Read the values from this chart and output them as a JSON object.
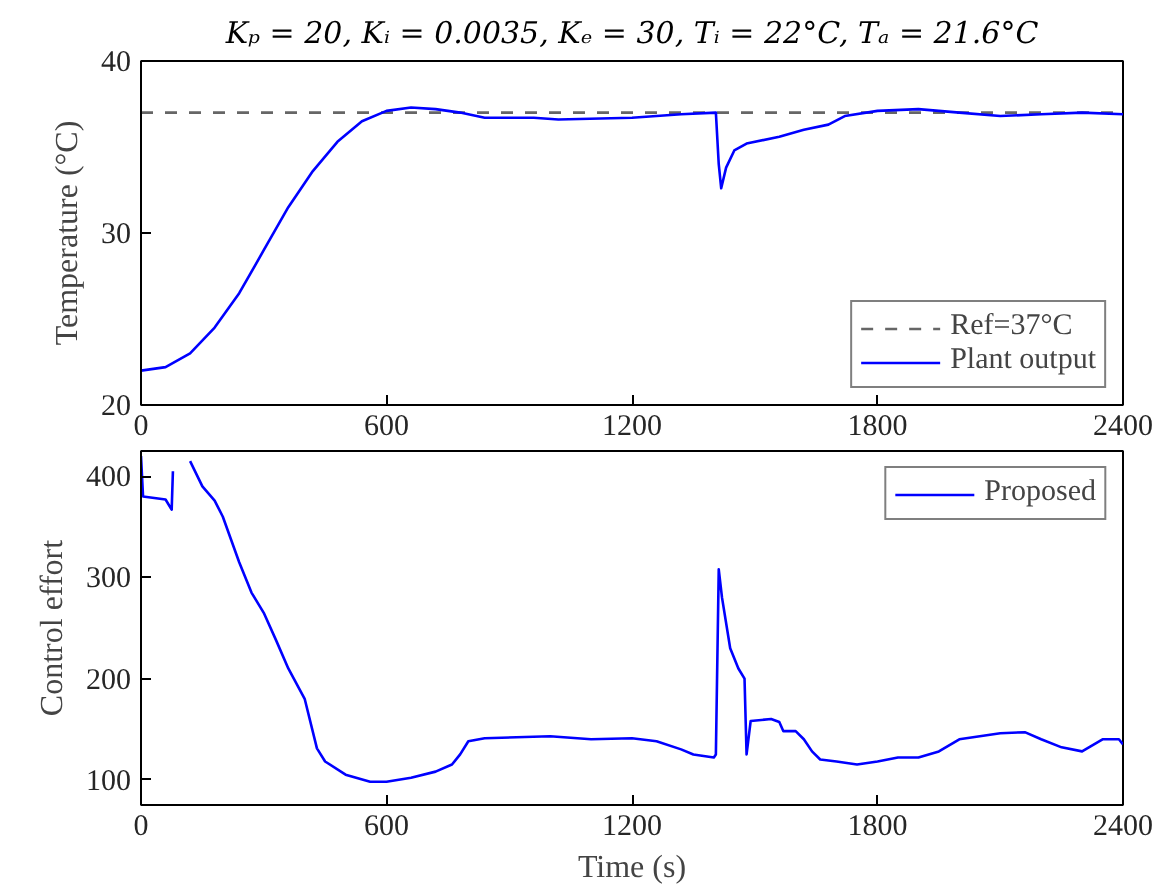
{
  "chart_data": [
    {
      "type": "line",
      "title": "Kₚ = 20, Kᵢ = 0.0035, Kₑ = 30, Tᵢ = 22°C, Tₐ = 21.6°C",
      "ylabel": "Temperature (°C)",
      "xlim": [
        0,
        2400
      ],
      "xticks": [
        0,
        600,
        1200,
        1800,
        2400
      ],
      "ylim": [
        20,
        40
      ],
      "yticks": [
        20,
        30,
        40
      ],
      "grid": false,
      "legend": "bottom right",
      "series": [
        {
          "name": "Ref=37°C",
          "color": "#666666",
          "line_style": "dashed",
          "x": [
            0,
            2400
          ],
          "values": [
            37,
            37
          ]
        },
        {
          "name": "Plant output",
          "color": "#0000ff",
          "line_style": "solid",
          "x": [
            0,
            60,
            120,
            180,
            240,
            300,
            360,
            420,
            480,
            540,
            600,
            660,
            720,
            780,
            840,
            960,
            1020,
            1200,
            1320,
            1405,
            1412,
            1418,
            1430,
            1450,
            1480,
            1560,
            1620,
            1680,
            1720,
            1800,
            1900,
            2000,
            2100,
            2200,
            2300,
            2400
          ],
          "values": [
            22.0,
            22.2,
            23.0,
            24.5,
            26.5,
            29.0,
            31.5,
            33.6,
            35.3,
            36.5,
            37.1,
            37.3,
            37.2,
            37.0,
            36.7,
            36.7,
            36.6,
            36.7,
            36.9,
            37.0,
            34.0,
            32.6,
            33.8,
            34.8,
            35.2,
            35.6,
            36.0,
            36.3,
            36.8,
            37.1,
            37.2,
            37.0,
            36.8,
            36.9,
            37.0,
            36.9
          ]
        }
      ]
    },
    {
      "type": "line",
      "xlabel": "Time (s)",
      "ylabel": "Control effort",
      "xlim": [
        0,
        2400
      ],
      "xticks": [
        0,
        600,
        1200,
        1800,
        2400
      ],
      "ylim": [
        75,
        425
      ],
      "yticks": [
        100,
        200,
        300,
        400
      ],
      "grid": false,
      "legend": "top right",
      "series": [
        {
          "name": "Proposed",
          "color": "#0000ff",
          "line_style": "solid",
          "x": [
            0,
            5,
            60,
            75,
            78,
            90,
            105,
            120,
            150,
            180,
            200,
            240,
            270,
            300,
            330,
            360,
            400,
            430,
            450,
            500,
            560,
            600,
            660,
            720,
            760,
            780,
            800,
            840,
            1000,
            1100,
            1200,
            1260,
            1320,
            1350,
            1400,
            1405,
            1412,
            1420,
            1440,
            1460,
            1475,
            1480,
            1490,
            1540,
            1560,
            1570,
            1600,
            1620,
            1640,
            1660,
            1700,
            1750,
            1800,
            1850,
            1900,
            1950,
            2000,
            2100,
            2160,
            2200,
            2250,
            2300,
            2350,
            2390,
            2400
          ],
          "values": [
            420,
            380,
            377,
            367,
            405,
            null,
            null,
            415,
            390,
            376,
            360,
            315,
            285,
            265,
            238,
            210,
            180,
            131,
            118,
            105,
            98,
            98,
            102,
            108,
            115,
            125,
            138,
            141,
            143,
            140,
            141,
            138,
            130,
            125,
            122,
            125,
            308,
            280,
            230,
            210,
            200,
            125,
            158,
            160,
            157,
            148,
            148,
            140,
            128,
            120,
            118,
            115,
            118,
            122,
            122,
            128,
            140,
            146,
            147,
            140,
            132,
            128,
            140,
            140,
            135
          ]
        }
      ]
    }
  ]
}
